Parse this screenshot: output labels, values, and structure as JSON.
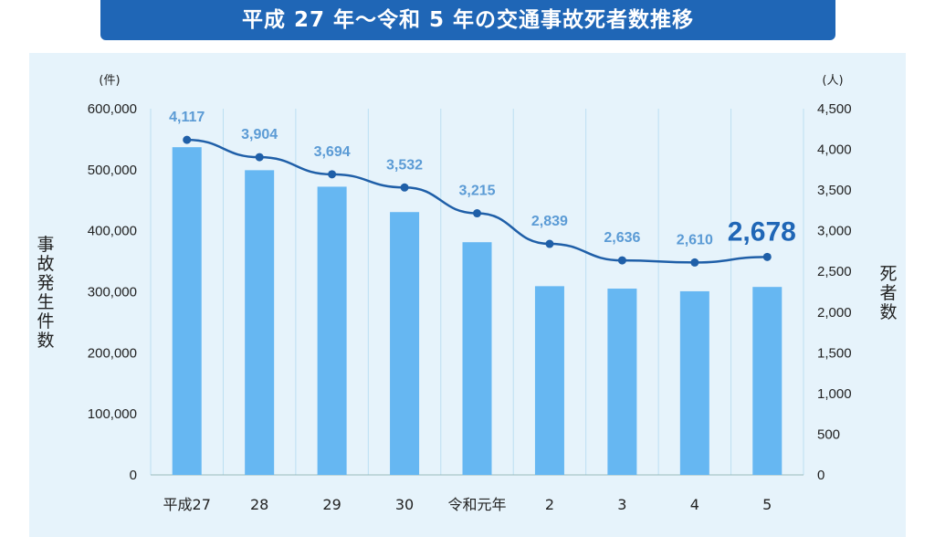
{
  "title": "平成 27 年〜令和 5 年の交通事故死者数推移",
  "chart_data": {
    "type": "bar+line",
    "categories": [
      "平成27",
      "28",
      "29",
      "30",
      "令和元年",
      "2",
      "3",
      "4",
      "5"
    ],
    "series": [
      {
        "name": "事故発生件数",
        "type": "bar",
        "axis": "left",
        "values": [
          536899,
          499201,
          472165,
          430601,
          381237,
          309178,
          305196,
          300839,
          307930
        ]
      },
      {
        "name": "死者数",
        "type": "line",
        "axis": "right",
        "values": [
          4117,
          3904,
          3694,
          3532,
          3215,
          2839,
          2636,
          2610,
          2678
        ]
      }
    ],
    "data_labels": [
      "4,117",
      "3,904",
      "3,694",
      "3,532",
      "3,215",
      "2,839",
      "2,636",
      "2,610",
      "2,678"
    ],
    "highlight_index": 8,
    "ylabel_left": "事故発生件数",
    "ylabel_right": "死者数",
    "unit_left": "(件)",
    "unit_right": "(人)",
    "ylim_left": [
      0,
      600000
    ],
    "ylim_right": [
      0,
      4500
    ],
    "yticks_left": [
      "0",
      "100,000",
      "200,000",
      "300,000",
      "400,000",
      "500,000",
      "600,000"
    ],
    "yticks_right": [
      "0",
      "500",
      "1,000",
      "1,500",
      "2,000",
      "2,500",
      "3,000",
      "3,500",
      "4,000",
      "4,500"
    ],
    "grid": "vertical",
    "colors": {
      "bar": "#66b7f2",
      "line": "#1f5fa8",
      "label": "#5b9bd5",
      "highlight": "#1f66b6",
      "title_bg": "#1f66b6",
      "panel_bg": "#e6f3fb"
    }
  }
}
